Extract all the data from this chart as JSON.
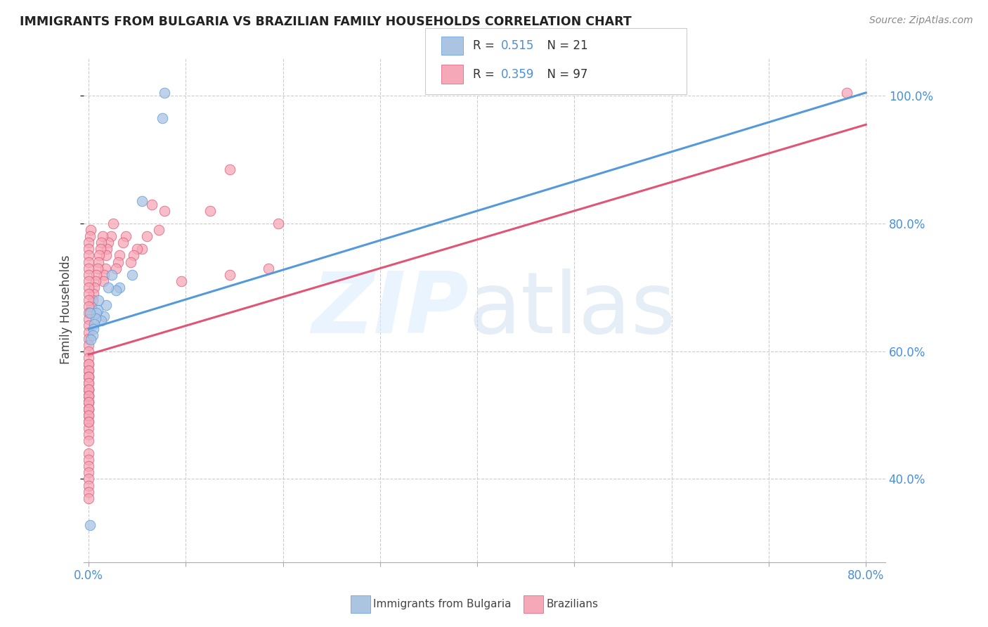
{
  "title": "IMMIGRANTS FROM BULGARIA VS BRAZILIAN FAMILY HOUSEHOLDS CORRELATION CHART",
  "source": "Source: ZipAtlas.com",
  "ylabel": "Family Households",
  "xlim": [
    -0.005,
    0.82
  ],
  "ylim": [
    0.27,
    1.06
  ],
  "x_ticks": [
    0.0,
    0.1,
    0.2,
    0.3,
    0.4,
    0.5,
    0.6,
    0.7,
    0.8
  ],
  "x_tick_labels_show": [
    "0.0%",
    "80.0%"
  ],
  "y_ticks": [
    0.4,
    0.6,
    0.8,
    1.0
  ],
  "y_tick_labels": [
    "40.0%",
    "60.0%",
    "80.0%",
    "100.0%"
  ],
  "bulgaria_color": "#aac4e2",
  "brazil_color": "#f5a8b8",
  "bulgaria_line_color": "#5599dd",
  "brazil_line_color": "#e05575",
  "legend_r_color": "#4a90d9",
  "legend_n_color": "#333333",
  "bulgaria_line_x0": 0.0,
  "bulgaria_line_x1": 0.8,
  "bulgaria_line_y0": 0.635,
  "bulgaria_line_y1": 1.005,
  "brazil_line_x0": 0.0,
  "brazil_line_x1": 0.8,
  "brazil_line_y0": 0.595,
  "brazil_line_y1": 0.955,
  "bg_x": [
    0.078,
    0.076,
    0.055,
    0.045,
    0.032,
    0.028,
    0.024,
    0.02,
    0.018,
    0.016,
    0.013,
    0.01,
    0.009,
    0.008,
    0.007,
    0.006,
    0.005,
    0.004,
    0.002,
    0.001,
    0.001
  ],
  "bg_y": [
    1.005,
    0.965,
    0.835,
    0.72,
    0.7,
    0.695,
    0.72,
    0.7,
    0.672,
    0.655,
    0.648,
    0.68,
    0.665,
    0.66,
    0.652,
    0.643,
    0.635,
    0.625,
    0.618,
    0.328,
    0.66
  ],
  "bz_x": [
    0.78,
    0.145,
    0.195,
    0.185,
    0.125,
    0.095,
    0.078,
    0.072,
    0.065,
    0.06,
    0.055,
    0.05,
    0.046,
    0.043,
    0.038,
    0.035,
    0.032,
    0.03,
    0.028,
    0.025,
    0.023,
    0.02,
    0.019,
    0.018,
    0.017,
    0.016,
    0.015,
    0.014,
    0.013,
    0.012,
    0.011,
    0.01,
    0.009,
    0.008,
    0.007,
    0.006,
    0.005,
    0.004,
    0.003,
    0.002,
    0.001,
    0.0,
    0.0,
    0.0,
    0.0,
    0.0,
    0.0,
    0.0,
    0.0,
    0.0,
    0.0,
    0.0,
    0.0,
    0.0,
    0.0,
    0.0,
    0.0,
    0.0,
    0.0,
    0.0,
    0.0,
    0.0,
    0.0,
    0.0,
    0.0,
    0.0,
    0.0,
    0.0,
    0.0,
    0.0,
    0.0,
    0.0,
    0.0,
    0.0,
    0.0,
    0.0,
    0.0,
    0.0,
    0.0,
    0.0,
    0.0,
    0.0,
    0.0,
    0.0,
    0.0,
    0.0,
    0.0,
    0.0,
    0.0,
    0.0,
    0.0,
    0.0,
    0.0,
    0.0,
    0.0,
    0.0,
    0.145
  ],
  "bz_y": [
    1.005,
    0.885,
    0.8,
    0.73,
    0.82,
    0.71,
    0.82,
    0.79,
    0.83,
    0.78,
    0.76,
    0.76,
    0.75,
    0.74,
    0.78,
    0.77,
    0.75,
    0.74,
    0.73,
    0.8,
    0.78,
    0.77,
    0.76,
    0.75,
    0.73,
    0.72,
    0.71,
    0.78,
    0.77,
    0.76,
    0.75,
    0.74,
    0.73,
    0.72,
    0.71,
    0.7,
    0.69,
    0.68,
    0.67,
    0.79,
    0.78,
    0.77,
    0.76,
    0.75,
    0.74,
    0.73,
    0.72,
    0.71,
    0.7,
    0.69,
    0.68,
    0.67,
    0.66,
    0.65,
    0.64,
    0.63,
    0.62,
    0.61,
    0.6,
    0.59,
    0.58,
    0.57,
    0.56,
    0.55,
    0.54,
    0.53,
    0.52,
    0.51,
    0.5,
    0.49,
    0.48,
    0.47,
    0.46,
    0.58,
    0.57,
    0.56,
    0.54,
    0.53,
    0.52,
    0.51,
    0.44,
    0.43,
    0.42,
    0.41,
    0.4,
    0.39,
    0.38,
    0.37,
    0.56,
    0.55,
    0.54,
    0.53,
    0.52,
    0.51,
    0.5,
    0.49,
    0.72
  ]
}
